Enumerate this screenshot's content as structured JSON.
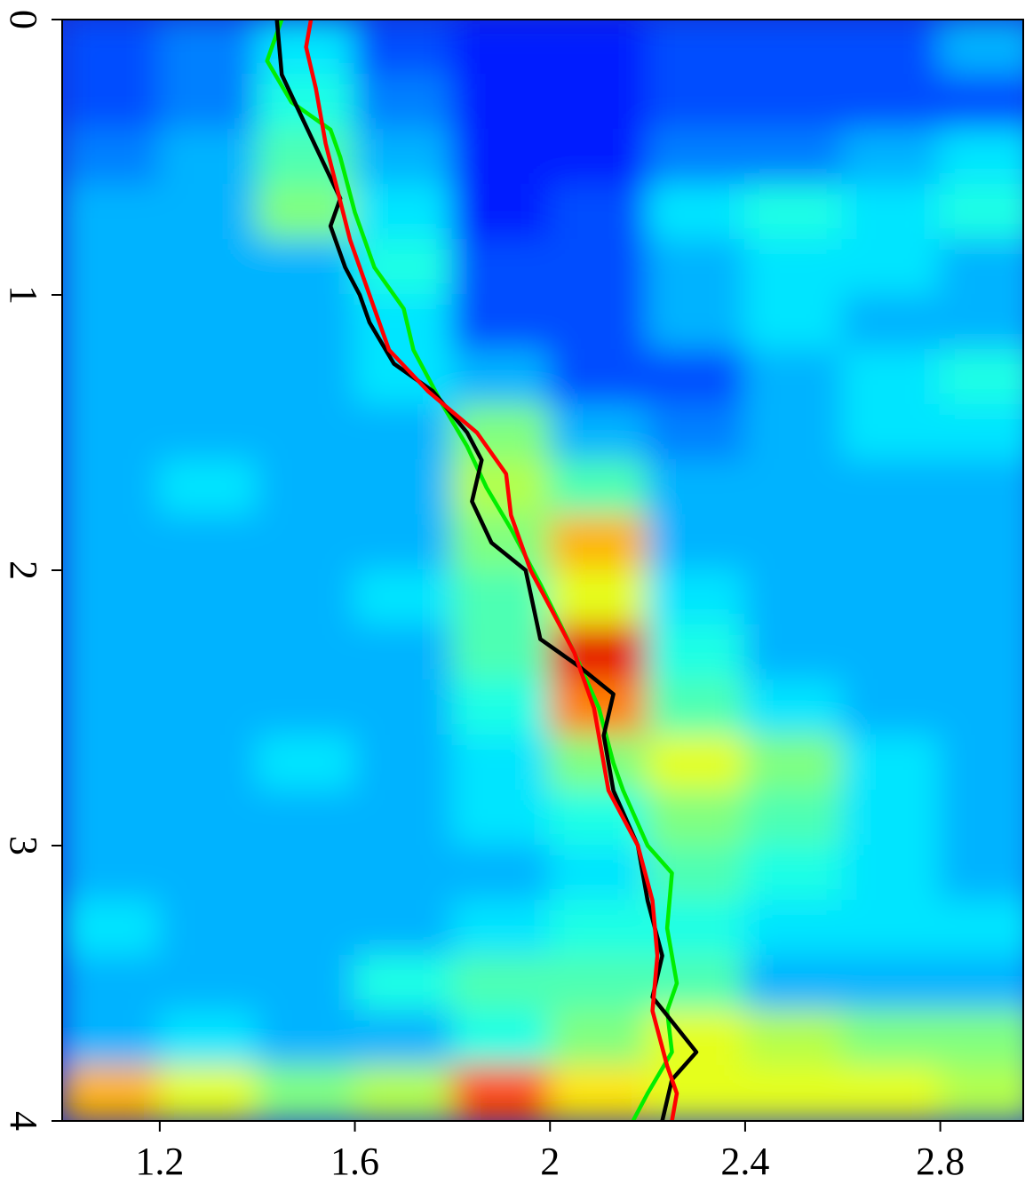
{
  "chart_data": {
    "type": "heatmap",
    "xlim": [
      1.0,
      2.97
    ],
    "ylim": [
      4,
      0
    ],
    "xticks": [
      1.2,
      1.6,
      2,
      2.4,
      2.8
    ],
    "yticks": [
      0,
      1,
      2,
      3,
      4
    ],
    "colormap": "jet",
    "zlim": [
      0,
      1
    ],
    "z_x": [
      1.1,
      1.3,
      1.5,
      1.7,
      1.9,
      2.1,
      2.3,
      2.5,
      2.7,
      2.9
    ],
    "z_y": [
      0.1,
      0.3,
      0.5,
      0.7,
      0.9,
      1.1,
      1.3,
      1.5,
      1.7,
      1.9,
      2.1,
      2.3,
      2.5,
      2.7,
      2.9,
      3.1,
      3.3,
      3.5,
      3.7,
      3.9
    ],
    "z": [
      [
        0.2,
        0.25,
        0.35,
        0.2,
        0.15,
        0.15,
        0.2,
        0.2,
        0.2,
        0.3
      ],
      [
        0.2,
        0.25,
        0.4,
        0.25,
        0.15,
        0.15,
        0.2,
        0.2,
        0.2,
        0.2
      ],
      [
        0.25,
        0.3,
        0.45,
        0.3,
        0.15,
        0.15,
        0.25,
        0.25,
        0.3,
        0.35
      ],
      [
        0.3,
        0.3,
        0.5,
        0.35,
        0.15,
        0.2,
        0.35,
        0.4,
        0.35,
        0.4
      ],
      [
        0.3,
        0.3,
        0.3,
        0.4,
        0.2,
        0.2,
        0.3,
        0.35,
        0.35,
        0.3
      ],
      [
        0.3,
        0.3,
        0.3,
        0.35,
        0.2,
        0.2,
        0.3,
        0.35,
        0.3,
        0.3
      ],
      [
        0.3,
        0.3,
        0.3,
        0.35,
        0.3,
        0.2,
        0.2,
        0.3,
        0.35,
        0.4
      ],
      [
        0.3,
        0.3,
        0.3,
        0.3,
        0.5,
        0.3,
        0.25,
        0.3,
        0.35,
        0.35
      ],
      [
        0.3,
        0.35,
        0.3,
        0.3,
        0.55,
        0.45,
        0.3,
        0.3,
        0.3,
        0.3
      ],
      [
        0.3,
        0.3,
        0.3,
        0.3,
        0.5,
        0.7,
        0.3,
        0.3,
        0.3,
        0.3
      ],
      [
        0.3,
        0.3,
        0.3,
        0.35,
        0.45,
        0.6,
        0.35,
        0.3,
        0.3,
        0.3
      ],
      [
        0.3,
        0.3,
        0.3,
        0.3,
        0.45,
        0.9,
        0.4,
        0.3,
        0.3,
        0.3
      ],
      [
        0.3,
        0.3,
        0.3,
        0.3,
        0.4,
        0.75,
        0.45,
        0.35,
        0.3,
        0.3
      ],
      [
        0.3,
        0.3,
        0.35,
        0.3,
        0.35,
        0.5,
        0.6,
        0.5,
        0.35,
        0.3
      ],
      [
        0.3,
        0.3,
        0.3,
        0.3,
        0.35,
        0.4,
        0.5,
        0.45,
        0.35,
        0.3
      ],
      [
        0.3,
        0.3,
        0.3,
        0.3,
        0.3,
        0.35,
        0.45,
        0.4,
        0.35,
        0.3
      ],
      [
        0.35,
        0.3,
        0.3,
        0.3,
        0.35,
        0.4,
        0.4,
        0.35,
        0.35,
        0.35
      ],
      [
        0.3,
        0.3,
        0.3,
        0.4,
        0.45,
        0.45,
        0.45,
        0.3,
        0.3,
        0.3
      ],
      [
        0.3,
        0.35,
        0.3,
        0.3,
        0.4,
        0.5,
        0.6,
        0.55,
        0.5,
        0.5
      ],
      [
        0.7,
        0.6,
        0.5,
        0.55,
        0.8,
        0.65,
        0.6,
        0.6,
        0.6,
        0.55
      ]
    ],
    "series": [
      {
        "color": "#00ee00",
        "x": [
          1.45,
          1.42,
          1.47,
          1.55,
          1.57,
          1.6,
          1.64,
          1.7,
          1.72,
          1.78,
          1.83,
          1.87,
          1.92,
          1.95,
          1.98,
          2.05,
          2.1,
          2.13,
          2.15,
          2.2,
          2.25,
          2.24,
          2.26,
          2.24,
          2.25,
          2.2,
          2.17
        ],
        "values": [
          0,
          0.15,
          0.3,
          0.4,
          0.5,
          0.7,
          0.9,
          1.05,
          1.2,
          1.4,
          1.55,
          1.7,
          1.85,
          1.95,
          2.05,
          2.3,
          2.5,
          2.7,
          2.8,
          3.0,
          3.1,
          3.3,
          3.5,
          3.6,
          3.75,
          3.9,
          4.0
        ]
      },
      {
        "color": "#000000",
        "x": [
          1.44,
          1.45,
          1.49,
          1.53,
          1.57,
          1.55,
          1.58,
          1.61,
          1.63,
          1.68,
          1.76,
          1.83,
          1.86,
          1.84,
          1.88,
          1.95,
          1.98,
          2.06,
          2.13,
          2.11,
          2.13,
          2.18,
          2.2,
          2.23,
          2.21,
          2.3,
          2.25,
          2.23
        ],
        "values": [
          0,
          0.2,
          0.35,
          0.5,
          0.65,
          0.75,
          0.9,
          1.0,
          1.1,
          1.25,
          1.35,
          1.5,
          1.6,
          1.75,
          1.9,
          2.0,
          2.25,
          2.35,
          2.45,
          2.6,
          2.8,
          3.0,
          3.2,
          3.4,
          3.55,
          3.75,
          3.85,
          4.0
        ]
      },
      {
        "color": "#ff0000",
        "x": [
          1.51,
          1.5,
          1.52,
          1.54,
          1.59,
          1.63,
          1.67,
          1.75,
          1.85,
          1.91,
          1.92,
          1.96,
          2.05,
          2.09,
          2.12,
          2.18,
          2.21,
          2.22,
          2.21,
          2.24,
          2.26,
          2.25
        ],
        "values": [
          0,
          0.1,
          0.25,
          0.45,
          0.8,
          1.0,
          1.2,
          1.35,
          1.5,
          1.65,
          1.8,
          2.0,
          2.3,
          2.5,
          2.8,
          3.0,
          3.2,
          3.4,
          3.6,
          3.8,
          3.9,
          4.0
        ]
      }
    ]
  }
}
